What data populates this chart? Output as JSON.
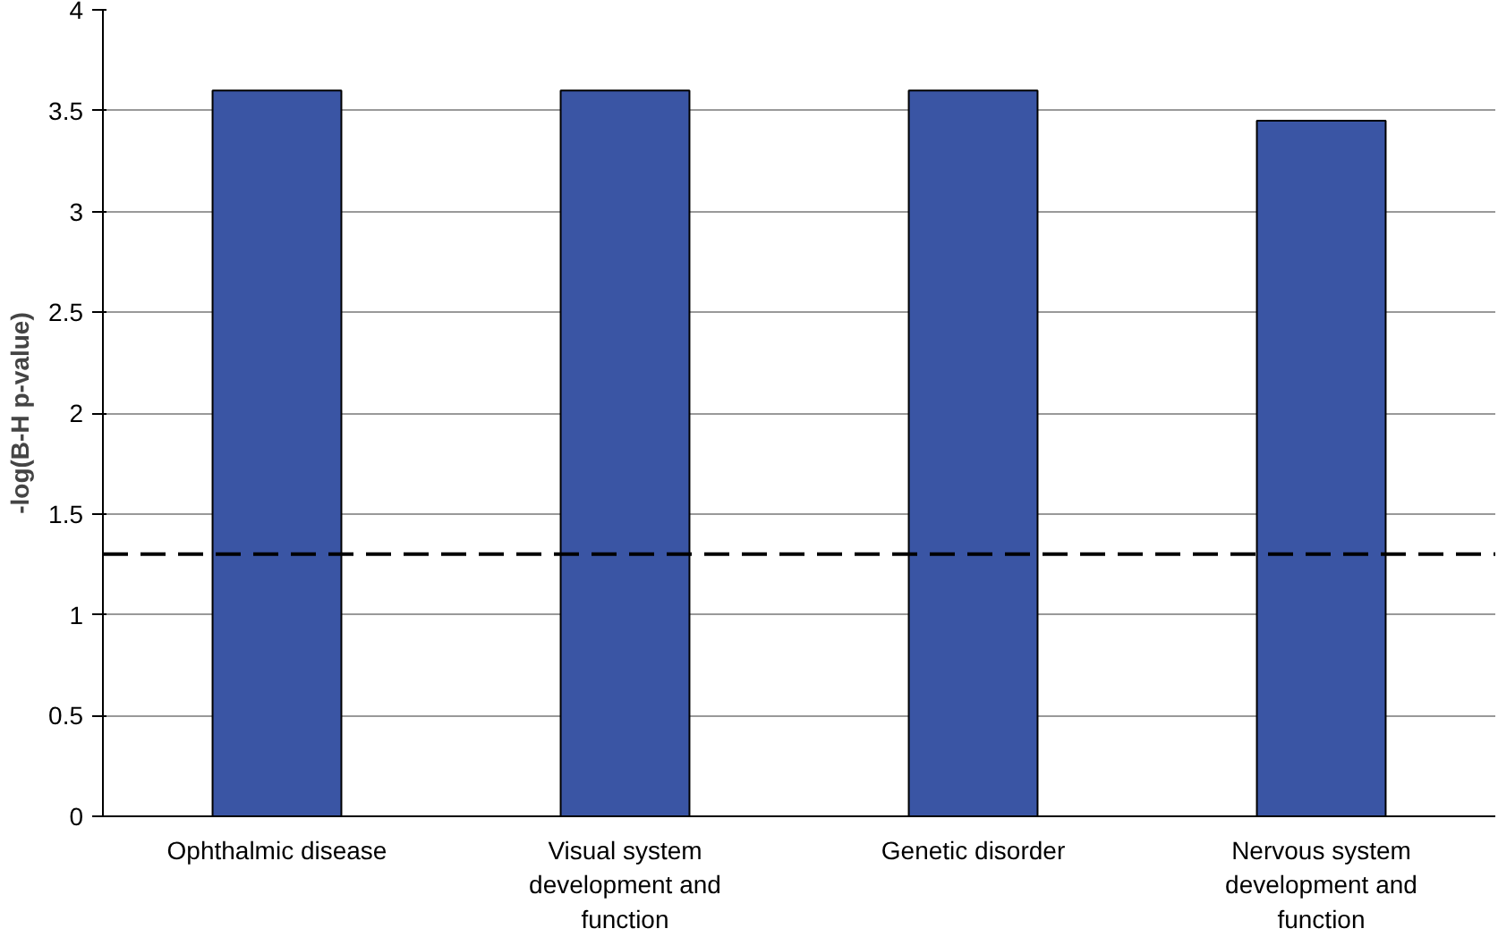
{
  "chart_data": {
    "type": "bar",
    "ylabel": "-log(B-H p-value)",
    "categories": [
      "Ophthalmic disease",
      "Visual system development and function",
      "Genetic disorder",
      "Nervous system development and function"
    ],
    "values": [
      3.6,
      3.6,
      3.6,
      3.45
    ],
    "color": "#3a55a4",
    "ylim": [
      0,
      4
    ],
    "yticks": [
      0,
      0.5,
      1,
      1.5,
      2,
      2.5,
      3,
      3.5,
      4
    ],
    "grid": "y",
    "ref_lines": [
      {
        "axis": "y",
        "value": 1.3,
        "line_style": "dashed",
        "color": "#000000"
      }
    ]
  }
}
